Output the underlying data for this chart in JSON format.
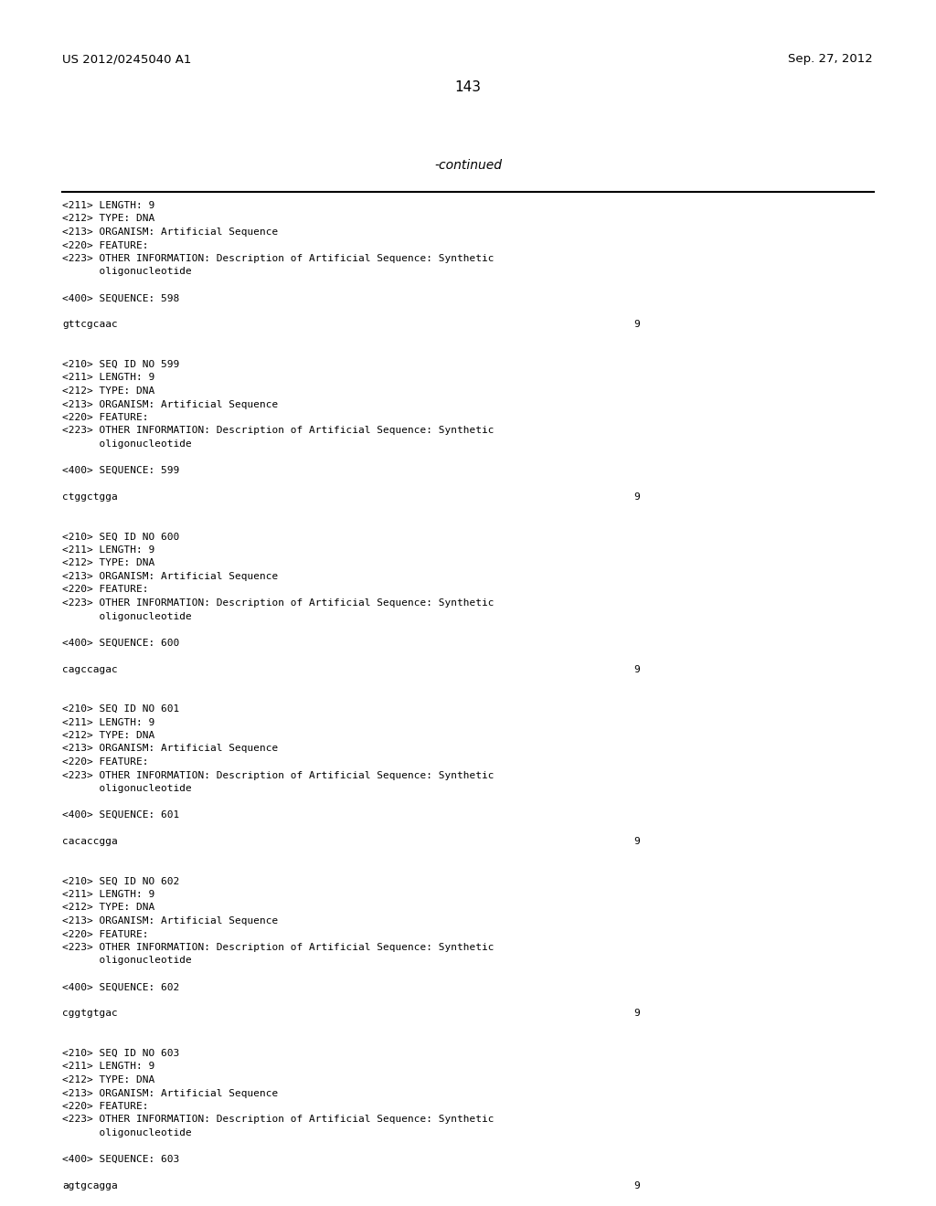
{
  "background_color": "#ffffff",
  "header_left": "US 2012/0245040 A1",
  "header_right": "Sep. 27, 2012",
  "page_number": "143",
  "continued_label": "-continued",
  "body_lines": [
    {
      "text": "<211> LENGTH: 9",
      "type": "normal"
    },
    {
      "text": "<212> TYPE: DNA",
      "type": "normal"
    },
    {
      "text": "<213> ORGANISM: Artificial Sequence",
      "type": "normal"
    },
    {
      "text": "<220> FEATURE:",
      "type": "normal"
    },
    {
      "text": "<223> OTHER INFORMATION: Description of Artificial Sequence: Synthetic",
      "type": "normal"
    },
    {
      "text": "      oligonucleotide",
      "type": "normal"
    },
    {
      "text": "",
      "type": "blank"
    },
    {
      "text": "<400> SEQUENCE: 598",
      "type": "normal"
    },
    {
      "text": "",
      "type": "blank"
    },
    {
      "text": "gttcgcaac",
      "type": "sequence",
      "num": "9"
    },
    {
      "text": "",
      "type": "blank"
    },
    {
      "text": "",
      "type": "blank"
    },
    {
      "text": "<210> SEQ ID NO 599",
      "type": "normal"
    },
    {
      "text": "<211> LENGTH: 9",
      "type": "normal"
    },
    {
      "text": "<212> TYPE: DNA",
      "type": "normal"
    },
    {
      "text": "<213> ORGANISM: Artificial Sequence",
      "type": "normal"
    },
    {
      "text": "<220> FEATURE:",
      "type": "normal"
    },
    {
      "text": "<223> OTHER INFORMATION: Description of Artificial Sequence: Synthetic",
      "type": "normal"
    },
    {
      "text": "      oligonucleotide",
      "type": "normal"
    },
    {
      "text": "",
      "type": "blank"
    },
    {
      "text": "<400> SEQUENCE: 599",
      "type": "normal"
    },
    {
      "text": "",
      "type": "blank"
    },
    {
      "text": "ctggctgga",
      "type": "sequence",
      "num": "9"
    },
    {
      "text": "",
      "type": "blank"
    },
    {
      "text": "",
      "type": "blank"
    },
    {
      "text": "<210> SEQ ID NO 600",
      "type": "normal"
    },
    {
      "text": "<211> LENGTH: 9",
      "type": "normal"
    },
    {
      "text": "<212> TYPE: DNA",
      "type": "normal"
    },
    {
      "text": "<213> ORGANISM: Artificial Sequence",
      "type": "normal"
    },
    {
      "text": "<220> FEATURE:",
      "type": "normal"
    },
    {
      "text": "<223> OTHER INFORMATION: Description of Artificial Sequence: Synthetic",
      "type": "normal"
    },
    {
      "text": "      oligonucleotide",
      "type": "normal"
    },
    {
      "text": "",
      "type": "blank"
    },
    {
      "text": "<400> SEQUENCE: 600",
      "type": "normal"
    },
    {
      "text": "",
      "type": "blank"
    },
    {
      "text": "cagccagac",
      "type": "sequence",
      "num": "9"
    },
    {
      "text": "",
      "type": "blank"
    },
    {
      "text": "",
      "type": "blank"
    },
    {
      "text": "<210> SEQ ID NO 601",
      "type": "normal"
    },
    {
      "text": "<211> LENGTH: 9",
      "type": "normal"
    },
    {
      "text": "<212> TYPE: DNA",
      "type": "normal"
    },
    {
      "text": "<213> ORGANISM: Artificial Sequence",
      "type": "normal"
    },
    {
      "text": "<220> FEATURE:",
      "type": "normal"
    },
    {
      "text": "<223> OTHER INFORMATION: Description of Artificial Sequence: Synthetic",
      "type": "normal"
    },
    {
      "text": "      oligonucleotide",
      "type": "normal"
    },
    {
      "text": "",
      "type": "blank"
    },
    {
      "text": "<400> SEQUENCE: 601",
      "type": "normal"
    },
    {
      "text": "",
      "type": "blank"
    },
    {
      "text": "cacaccgga",
      "type": "sequence",
      "num": "9"
    },
    {
      "text": "",
      "type": "blank"
    },
    {
      "text": "",
      "type": "blank"
    },
    {
      "text": "<210> SEQ ID NO 602",
      "type": "normal"
    },
    {
      "text": "<211> LENGTH: 9",
      "type": "normal"
    },
    {
      "text": "<212> TYPE: DNA",
      "type": "normal"
    },
    {
      "text": "<213> ORGANISM: Artificial Sequence",
      "type": "normal"
    },
    {
      "text": "<220> FEATURE:",
      "type": "normal"
    },
    {
      "text": "<223> OTHER INFORMATION: Description of Artificial Sequence: Synthetic",
      "type": "normal"
    },
    {
      "text": "      oligonucleotide",
      "type": "normal"
    },
    {
      "text": "",
      "type": "blank"
    },
    {
      "text": "<400> SEQUENCE: 602",
      "type": "normal"
    },
    {
      "text": "",
      "type": "blank"
    },
    {
      "text": "cggtgtgac",
      "type": "sequence",
      "num": "9"
    },
    {
      "text": "",
      "type": "blank"
    },
    {
      "text": "",
      "type": "blank"
    },
    {
      "text": "<210> SEQ ID NO 603",
      "type": "normal"
    },
    {
      "text": "<211> LENGTH: 9",
      "type": "normal"
    },
    {
      "text": "<212> TYPE: DNA",
      "type": "normal"
    },
    {
      "text": "<213> ORGANISM: Artificial Sequence",
      "type": "normal"
    },
    {
      "text": "<220> FEATURE:",
      "type": "normal"
    },
    {
      "text": "<223> OTHER INFORMATION: Description of Artificial Sequence: Synthetic",
      "type": "normal"
    },
    {
      "text": "      oligonucleotide",
      "type": "normal"
    },
    {
      "text": "",
      "type": "blank"
    },
    {
      "text": "<400> SEQUENCE: 603",
      "type": "normal"
    },
    {
      "text": "",
      "type": "blank"
    },
    {
      "text": "agtgcagga",
      "type": "sequence",
      "num": "9"
    }
  ]
}
